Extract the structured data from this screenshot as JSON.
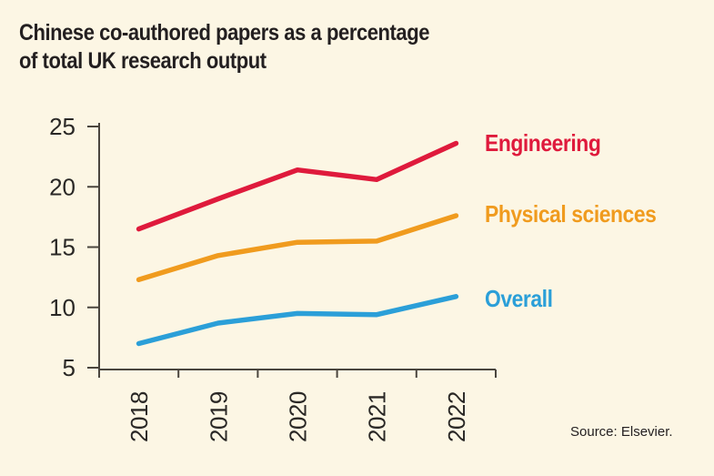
{
  "header": {
    "title_line1": "Chinese co-authored papers as a percentage",
    "title_line2": "of total UK research output"
  },
  "source_label": "Source: Elsevier.",
  "colors": {
    "background": "#fcf6e4",
    "title_text": "#231f20",
    "axis": "#4a453e",
    "tick_text": "#2a2826",
    "engineering": "#df1a3c",
    "physical_sciences": "#f09b1e",
    "overall": "#2b9fd8"
  },
  "chart_data": {
    "type": "line",
    "title": "Chinese co-authored papers as a percentage of total UK research output",
    "xlabel": "",
    "ylabel": "",
    "categories": [
      "2018",
      "2019",
      "2020",
      "2021",
      "2022"
    ],
    "series": [
      {
        "name": "Engineering",
        "color": "#df1a3c",
        "values": [
          16.5,
          19.0,
          21.4,
          20.6,
          23.6
        ]
      },
      {
        "name": "Physical sciences",
        "color": "#f09b1e",
        "values": [
          12.3,
          14.3,
          15.4,
          15.5,
          17.6
        ]
      },
      {
        "name": "Overall",
        "color": "#2b9fd8",
        "values": [
          7.0,
          8.7,
          9.5,
          9.4,
          10.9
        ]
      }
    ],
    "y_ticks": [
      25,
      20,
      15,
      10,
      5
    ],
    "ylim": [
      5,
      25
    ],
    "grid": false,
    "legend_position": "right-of-lines",
    "x_tick_label_rotation": -90
  }
}
